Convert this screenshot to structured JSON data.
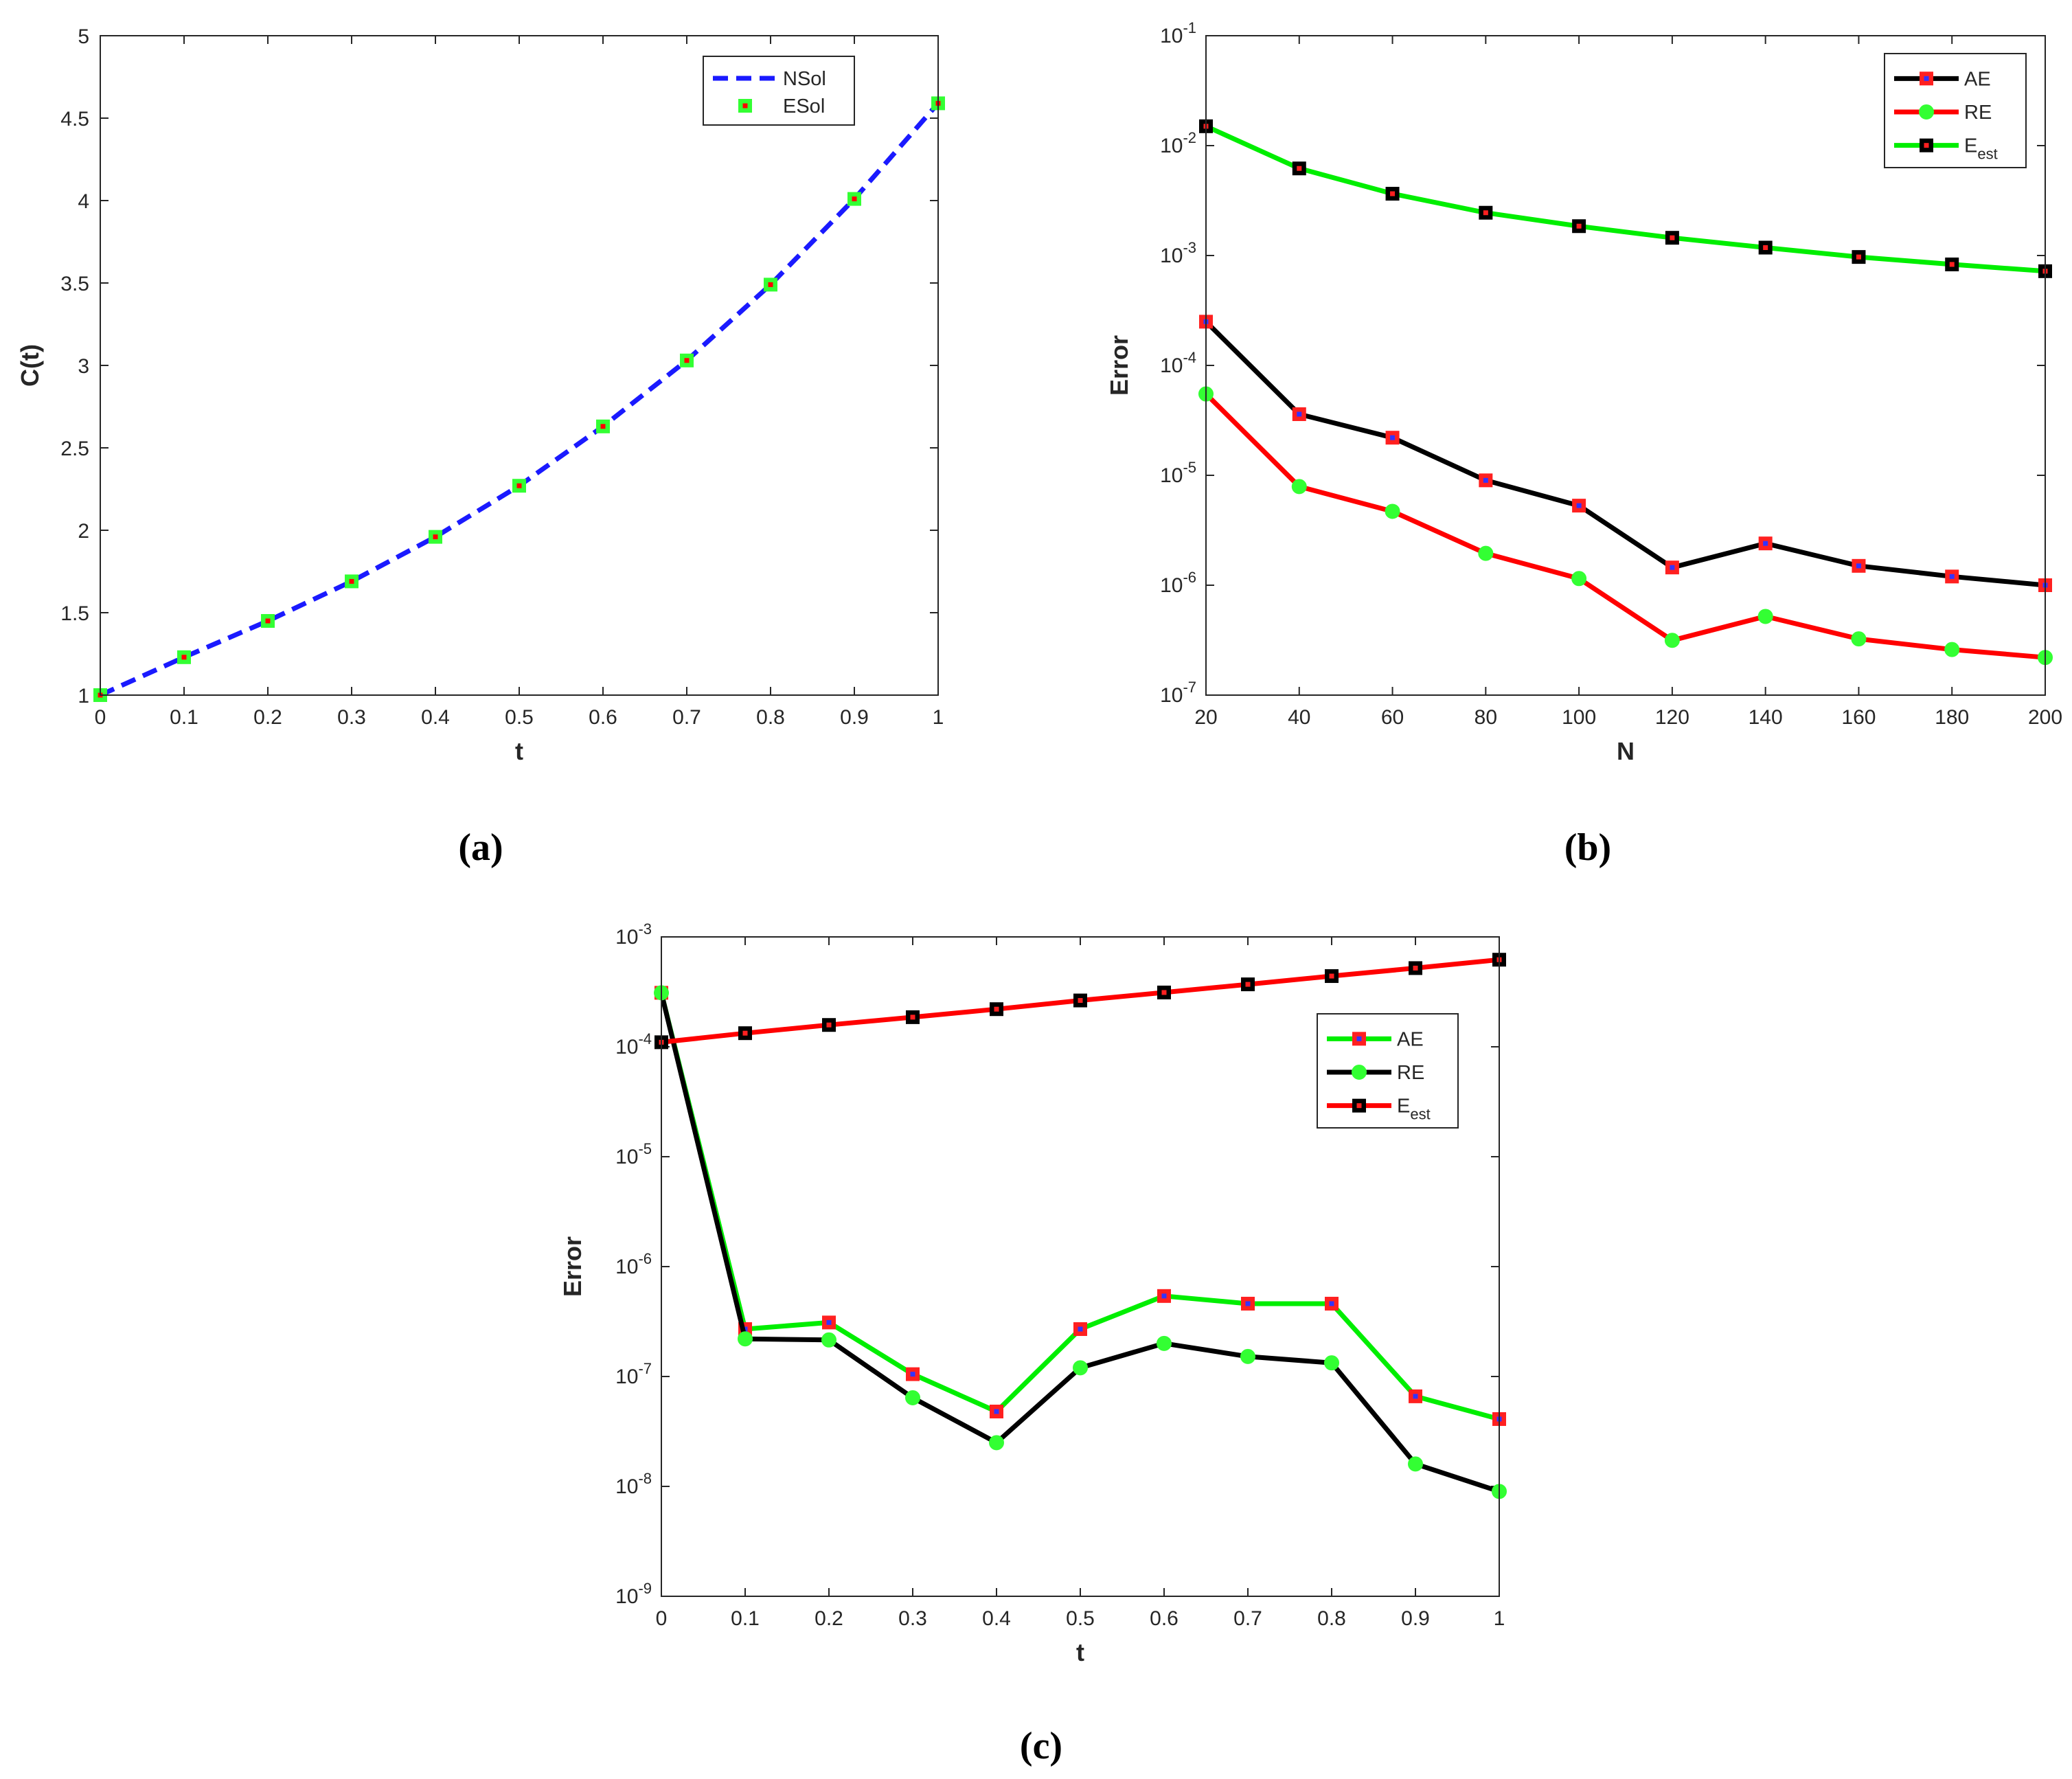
{
  "chart_data": [
    {
      "id": "a",
      "type": "line",
      "caption": "(a)",
      "xlabel": "t",
      "ylabel": "C(t)",
      "yscale": "linear",
      "xlim": [
        0,
        1
      ],
      "ylim": [
        1,
        5
      ],
      "xticks": [
        0,
        0.1,
        0.2,
        0.3,
        0.4,
        0.5,
        0.6,
        0.7,
        0.8,
        0.9,
        1
      ],
      "xticklabels": [
        "0",
        "0.1",
        "0.2",
        "0.3",
        "0.4",
        "0.5",
        "0.6",
        "0.7",
        "0.8",
        "0.9",
        "1"
      ],
      "yticks": [
        1,
        1.5,
        2,
        2.5,
        3,
        3.5,
        4,
        4.5,
        5
      ],
      "yticklabels": [
        "1",
        "1.5",
        "2",
        "2.5",
        "3",
        "3.5",
        "4",
        "4.5",
        "5"
      ],
      "legend_position": "top-right",
      "x": [
        0,
        0.1,
        0.2,
        0.3,
        0.4,
        0.5,
        0.6,
        0.7,
        0.8,
        0.9,
        1
      ],
      "series": [
        {
          "name": "NSol",
          "style": "dashed-line",
          "line": "#1a1aff",
          "values": [
            1,
            1.23,
            1.45,
            1.69,
            1.96,
            2.27,
            2.63,
            3.03,
            3.49,
            4.01,
            4.59
          ]
        },
        {
          "name": "ESol",
          "style": "markers",
          "marker": "square",
          "marker_fill": "#ff0000",
          "marker_edge": "#33ff33",
          "values": [
            1,
            1.23,
            1.45,
            1.69,
            1.96,
            2.27,
            2.63,
            3.03,
            3.49,
            4.01,
            4.59
          ]
        }
      ]
    },
    {
      "id": "b",
      "type": "line",
      "caption": "(b)",
      "xlabel": "N",
      "ylabel": "Error",
      "yscale": "log",
      "xlim": [
        20,
        200
      ],
      "ylim_exp": [
        -7,
        -1
      ],
      "xticks": [
        20,
        40,
        60,
        80,
        100,
        120,
        140,
        160,
        180,
        200
      ],
      "xticklabels": [
        "20",
        "40",
        "60",
        "80",
        "100",
        "120",
        "140",
        "160",
        "180",
        "200"
      ],
      "ytick_exponents": [
        -7,
        -6,
        -5,
        -4,
        -3,
        -2,
        -1
      ],
      "ytick_base": "10",
      "ytick_exp_labels": [
        "-7",
        "-6",
        "-5",
        "-4",
        "-3",
        "-2",
        "-1"
      ],
      "legend_position": "top-right",
      "x": [
        20,
        40,
        60,
        80,
        100,
        120,
        140,
        160,
        180,
        200
      ],
      "series": [
        {
          "name": "AE",
          "sub": "",
          "line": "#000000",
          "marker": "square",
          "marker_fill": "#3333ff",
          "marker_edge": "#ff2020",
          "values": [
            0.00025,
            3.6e-05,
            2.2e-05,
            9e-06,
            5.3e-06,
            1.45e-06,
            2.4e-06,
            1.5e-06,
            1.2e-06,
            1e-06
          ]
        },
        {
          "name": "RE",
          "sub": "",
          "line": "#ff0000",
          "marker": "circle",
          "marker_fill": "#33ff33",
          "marker_edge": "#33ff33",
          "values": [
            5.5e-05,
            7.9e-06,
            4.7e-06,
            1.95e-06,
            1.15e-06,
            3.15e-07,
            5.2e-07,
            3.25e-07,
            2.6e-07,
            2.2e-07
          ]
        },
        {
          "name": "E",
          "sub": "est",
          "line": "#00ee00",
          "marker": "square",
          "marker_fill": "#ff2020",
          "marker_edge": "#000000",
          "values": [
            0.015,
            0.0062,
            0.00365,
            0.00245,
            0.00185,
            0.00145,
            0.00118,
            0.00097,
            0.00083,
            0.00072
          ]
        }
      ]
    },
    {
      "id": "c",
      "type": "line",
      "caption": "(c)",
      "xlabel": "t",
      "ylabel": "Error",
      "yscale": "log",
      "xlim": [
        0,
        1
      ],
      "ylim_exp": [
        -9,
        -3
      ],
      "xticks": [
        0,
        0.1,
        0.2,
        0.3,
        0.4,
        0.5,
        0.6,
        0.7,
        0.8,
        0.9,
        1
      ],
      "xticklabels": [
        "0",
        "0.1",
        "0.2",
        "0.3",
        "0.4",
        "0.5",
        "0.6",
        "0.7",
        "0.8",
        "0.9",
        "1"
      ],
      "ytick_exponents": [
        -9,
        -8,
        -7,
        -6,
        -5,
        -4,
        -3
      ],
      "ytick_base": "10",
      "ytick_exp_labels": [
        "-9",
        "-8",
        "-7",
        "-6",
        "-5",
        "-4",
        "-3"
      ],
      "legend_position": "right",
      "x": [
        0,
        0.1,
        0.2,
        0.3,
        0.4,
        0.5,
        0.6,
        0.7,
        0.8,
        0.9,
        1
      ],
      "series": [
        {
          "name": "AE",
          "sub": "",
          "line": "#00ee00",
          "marker": "square",
          "marker_fill": "#3333ff",
          "marker_edge": "#ff2020",
          "values": [
            0.00031,
            2.7e-07,
            3.1e-07,
            1.05e-07,
            4.8e-08,
            2.7e-07,
            5.4e-07,
            4.6e-07,
            4.6e-07,
            6.6e-08,
            4.1e-08
          ]
        },
        {
          "name": "RE",
          "sub": "",
          "line": "#000000",
          "marker": "circle",
          "marker_fill": "#33ff33",
          "marker_edge": "#33ff33",
          "values": [
            0.00031,
            2.2e-07,
            2.15e-07,
            6.4e-08,
            2.5e-08,
            1.2e-07,
            2e-07,
            1.52e-07,
            1.33e-07,
            1.6e-08,
            9e-09
          ]
        },
        {
          "name": "E",
          "sub": "est",
          "line": "#ff0000",
          "marker": "square",
          "marker_fill": "#ff2020",
          "marker_edge": "#000000",
          "values": [
            0.00011,
            0.000133,
            0.000158,
            0.000186,
            0.00022,
            0.000264,
            0.000312,
            0.00037,
            0.00044,
            0.00052,
            0.00062
          ]
        }
      ]
    }
  ]
}
